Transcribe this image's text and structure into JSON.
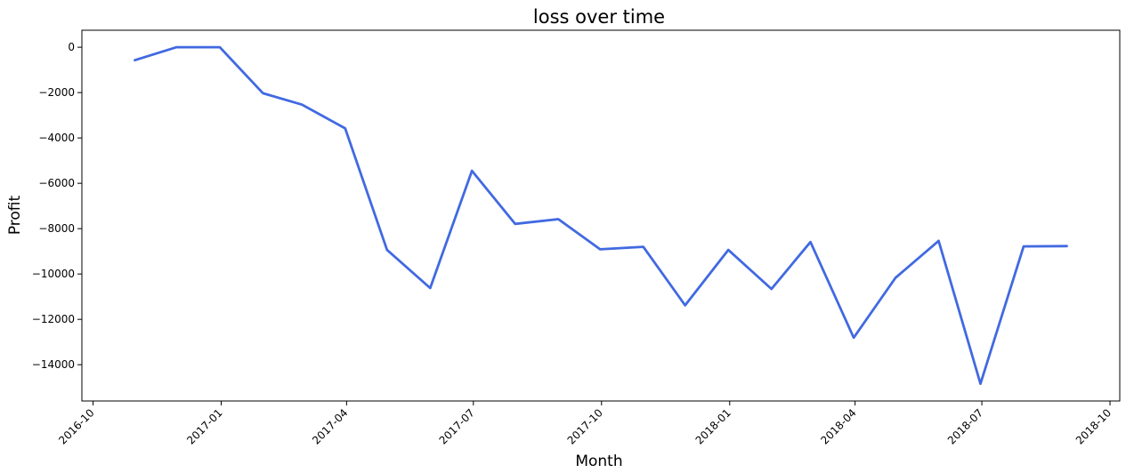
{
  "chart_data": {
    "type": "line",
    "title": "loss over time",
    "xlabel": "Month",
    "ylabel": "Profit",
    "x_tick_labels": [
      "2016-10",
      "2017-01",
      "2017-04",
      "2017-07",
      "2017-10",
      "2018-01",
      "2018-04",
      "2018-07",
      "2018-10"
    ],
    "y_ticks": [
      0,
      -2000,
      -4000,
      -6000,
      -8000,
      -10000,
      -12000,
      -14000
    ],
    "y_tick_labels": [
      "0",
      "−2000",
      "−4000",
      "−6000",
      "−8000",
      "−10000",
      "−12000",
      "−14000"
    ],
    "ylim": [
      -15600,
      750
    ],
    "xlim": [
      "2016-09-23",
      "2018-10-08"
    ],
    "grid": false,
    "series": [
      {
        "color": "#4169e1",
        "x": [
          "2016-10-31",
          "2016-11-30",
          "2016-12-31",
          "2017-01-31",
          "2017-02-28",
          "2017-03-31",
          "2017-04-30",
          "2017-05-31",
          "2017-06-30",
          "2017-07-31",
          "2017-08-31",
          "2017-09-30",
          "2017-10-31",
          "2017-11-30",
          "2017-12-31",
          "2018-01-31",
          "2018-02-28",
          "2018-03-31",
          "2018-04-30",
          "2018-05-31",
          "2018-06-30",
          "2018-07-31",
          "2018-08-31"
        ],
        "y": [
          -570,
          0,
          0,
          -2030,
          -2530,
          -3580,
          -8940,
          -10620,
          -5450,
          -7790,
          -7580,
          -8910,
          -8800,
          -11380,
          -8940,
          -10660,
          -8590,
          -12810,
          -10170,
          -8540,
          -14840,
          -8780,
          -8770
        ]
      }
    ]
  }
}
